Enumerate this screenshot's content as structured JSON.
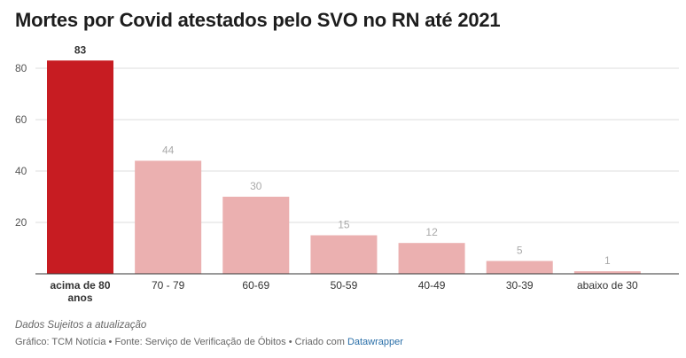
{
  "title": "Mortes por Covid atestados pelo SVO no RN até 2021",
  "note": "Dados Sujeitos a atualização",
  "credits": {
    "prefix": "Gráfico: TCM Notícia • Fonte: Serviço de Verificação de Óbitos • Criado com",
    "link": "Datawrapper"
  },
  "colors": {
    "highlight": "#c71c22",
    "muted": "#ebb0b0",
    "grid": "#dddddd",
    "axis": "#333333"
  },
  "chart_data": {
    "type": "bar",
    "title": "Mortes por Covid atestados pelo SVO no RN até 2021",
    "categories": [
      "acima de 80 anos",
      "70 - 79",
      "60-69",
      "50-59",
      "40-49",
      "30-39",
      "abaixo de 30"
    ],
    "values": [
      83,
      44,
      30,
      15,
      12,
      5,
      1
    ],
    "highlight_index": 0,
    "ylim": [
      0,
      90
    ],
    "yticks": [
      20,
      40,
      60,
      80
    ],
    "xlabel": "",
    "ylabel": "",
    "grid": true
  }
}
